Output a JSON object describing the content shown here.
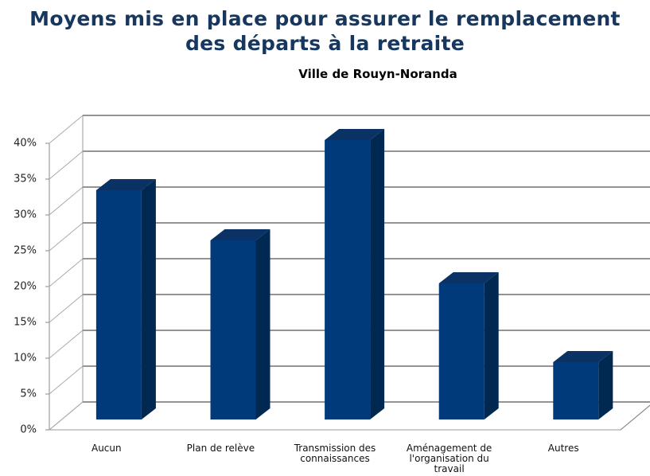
{
  "chart_data": {
    "type": "bar3d",
    "title": "Moyens mis en place pour assurer le remplacement des départs à la retraite",
    "subtitle": "Ville de Rouyn-Noranda",
    "categories": [
      "Aucun",
      "Plan de relève",
      "Transmission des connaissances",
      "Aménagement de l'organisation du travail",
      "Autres"
    ],
    "values": [
      32,
      25,
      39,
      19,
      8
    ],
    "color": "#003a7a",
    "ylim": [
      0,
      40
    ],
    "yticks": [
      {
        "value": 0,
        "label": "0%"
      },
      {
        "value": 5,
        "label": "5%"
      },
      {
        "value": 10,
        "label": "10%"
      },
      {
        "value": 15,
        "label": "15%"
      },
      {
        "value": 20,
        "label": "20%"
      },
      {
        "value": 25,
        "label": "25%"
      },
      {
        "value": 30,
        "label": "30%"
      },
      {
        "value": 35,
        "label": "35%"
      },
      {
        "value": 40,
        "label": "40%"
      }
    ],
    "grid": true
  }
}
